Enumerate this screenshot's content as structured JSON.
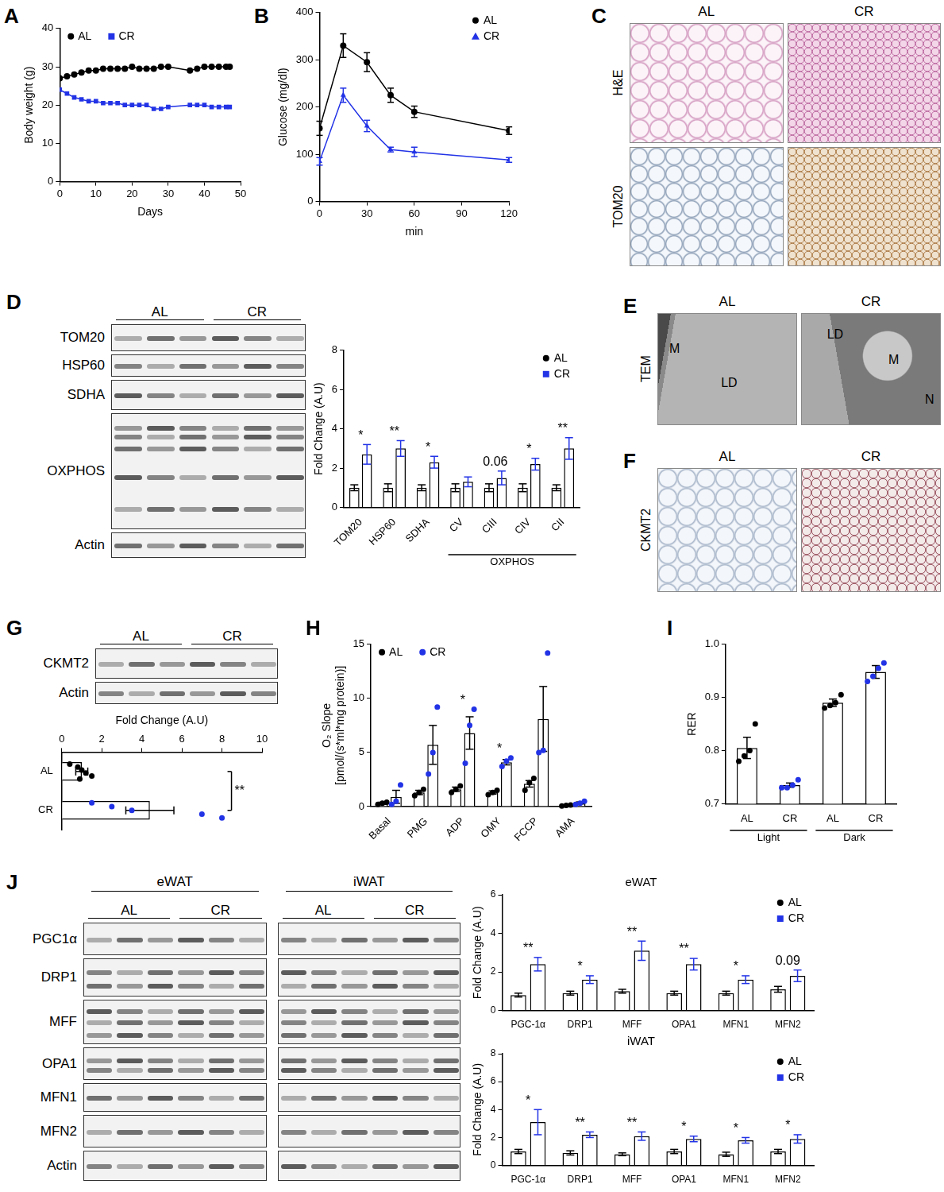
{
  "chart_data": [
    {
      "type": "line",
      "panel": "A",
      "xlabel": "Days",
      "ylabel": "Body weight (g)",
      "x": [
        0,
        2,
        4,
        6,
        8,
        10,
        12,
        14,
        16,
        18,
        20,
        22,
        24,
        26,
        28,
        30,
        36,
        38,
        40,
        42,
        44,
        46,
        47
      ],
      "xlim": [
        0,
        50
      ],
      "xticks": [
        0,
        10,
        20,
        30,
        40,
        50
      ],
      "ylim": [
        0,
        40
      ],
      "yticks": [
        0,
        10,
        20,
        30,
        40
      ],
      "legend": "top-left",
      "grid": false,
      "series": [
        {
          "name": "AL",
          "color": "#000000",
          "marker": "circle",
          "values": [
            27,
            27.5,
            28,
            28.5,
            29,
            29,
            29.5,
            29.5,
            29.5,
            29.5,
            30,
            29.5,
            29.5,
            29.5,
            30,
            30,
            29,
            29.5,
            30,
            30,
            30,
            30,
            30
          ]
        },
        {
          "name": "CR",
          "color": "#2233e6",
          "marker": "square",
          "values": [
            24,
            23,
            22,
            21.5,
            21,
            21,
            20.5,
            20.5,
            20.5,
            20,
            20,
            20,
            20,
            19,
            19,
            19.5,
            20,
            20,
            20,
            19.5,
            19.5,
            19.5,
            19.5
          ]
        }
      ]
    },
    {
      "type": "line",
      "panel": "B",
      "xlabel": "min",
      "ylabel": "Glucose (mg/dl)",
      "x": [
        0,
        15,
        30,
        45,
        60,
        120
      ],
      "xlim": [
        0,
        120
      ],
      "xticks": [
        0,
        30,
        60,
        90,
        120
      ],
      "ylim": [
        0,
        400
      ],
      "yticks": [
        0,
        100,
        200,
        300,
        400
      ],
      "legend": "top-right",
      "grid": false,
      "series": [
        {
          "name": "AL",
          "color": "#000000",
          "marker": "circle",
          "values": [
            155,
            330,
            295,
            225,
            190,
            150
          ],
          "errors": [
            15,
            25,
            20,
            15,
            12,
            8
          ]
        },
        {
          "name": "CR",
          "color": "#2233e6",
          "marker": "triangle",
          "values": [
            85,
            225,
            160,
            110,
            105,
            88
          ],
          "errors": [
            8,
            15,
            12,
            5,
            10,
            5
          ]
        }
      ]
    },
    {
      "type": "bar",
      "categories": [
        "TOM20",
        "HSP60",
        "SDHA",
        "CV",
        "CIII",
        "CIV",
        "CII"
      ],
      "groups": [
        null,
        null,
        null,
        "OXPHOS",
        "OXPHOS",
        "OXPHOS",
        "OXPHOS"
      ],
      "ylabel": "Fold Change (A.U)",
      "ylim": [
        0,
        8
      ],
      "yticks": [
        0,
        2,
        4,
        6,
        8
      ],
      "legend": "top-right",
      "grid": false,
      "annotations": [
        "*",
        "**",
        "*",
        null,
        "0.06",
        "*",
        "**"
      ],
      "series": [
        {
          "name": "AL",
          "color": "#000000",
          "marker": "circle",
          "values": [
            1,
            1,
            1,
            1,
            1,
            1,
            1
          ],
          "errors": [
            0.15,
            0.2,
            0.15,
            0.2,
            0.2,
            0.2,
            0.15
          ]
        },
        {
          "name": "CR",
          "color": "#2233e6",
          "marker": "square",
          "values": [
            2.7,
            3.0,
            2.3,
            1.3,
            1.5,
            2.2,
            3.0
          ],
          "errors": [
            0.5,
            0.4,
            0.3,
            0.25,
            0.35,
            0.3,
            0.55
          ]
        }
      ]
    },
    {
      "type": "bar",
      "orientation": "horizontal",
      "categories": [
        "AL",
        "CR"
      ],
      "xlabel": "Fold Change (A.U)",
      "xlim": [
        0,
        10
      ],
      "xticks": [
        0,
        2,
        4,
        6,
        8,
        10
      ],
      "grid": false,
      "significance": "**",
      "marker": "circle",
      "colors": [
        "#000000",
        "#2233e6"
      ],
      "values": [
        1.0,
        4.4
      ],
      "errors": [
        0.3,
        1.2
      ],
      "points": [
        [
          0.4,
          0.8,
          1.0,
          1.2,
          1.5,
          0.9
        ],
        [
          1.5,
          2.5,
          3.5,
          7,
          8
        ]
      ]
    },
    {
      "type": "bar",
      "panel": "H",
      "categories": [
        "Basal",
        "PMG",
        "ADP",
        "OMY",
        "FCCP",
        "AMA"
      ],
      "ylabel": [
        "O₂ Slope",
        "[pmol/(s*ml*mg protein)]"
      ],
      "ylim": [
        0,
        15
      ],
      "yticks": [
        0,
        5,
        10,
        15
      ],
      "legend": "top-left",
      "grid": false,
      "annotations": [
        null,
        null,
        "*",
        "*",
        null,
        null
      ],
      "series": [
        {
          "name": "AL",
          "color": "#000000",
          "marker": "circle",
          "values": [
            0.3,
            1.3,
            1.6,
            1.3,
            2.1,
            0.1
          ],
          "errors": [
            0.1,
            0.2,
            0.2,
            0.15,
            0.3,
            0.05
          ],
          "points": [
            [
              0.2,
              0.3,
              0.4
            ],
            [
              1.0,
              1.3,
              1.6
            ],
            [
              1.3,
              1.6,
              1.9
            ],
            [
              1.1,
              1.3,
              1.5
            ],
            [
              1.5,
              2.2,
              2.6
            ],
            [
              0.05,
              0.1,
              0.15
            ]
          ]
        },
        {
          "name": "CR",
          "color": "#2233e6",
          "marker": "circle",
          "values": [
            0.9,
            5.7,
            6.8,
            4.1,
            8.1,
            0.33
          ],
          "errors": [
            0.6,
            1.8,
            1.5,
            0.25,
            3.0,
            0.1
          ],
          "points": [
            [
              0.2,
              0.5,
              2.0
            ],
            [
              3.0,
              5.0,
              9.2
            ],
            [
              4.0,
              7.5,
              9.0
            ],
            [
              3.7,
              4.2,
              4.5
            ],
            [
              5.0,
              5.2,
              14.2
            ],
            [
              0.2,
              0.3,
              0.5
            ]
          ]
        }
      ]
    },
    {
      "type": "bar",
      "panel": "I",
      "categories": [
        "AL",
        "CR",
        "AL",
        "CR"
      ],
      "groups": [
        "Light",
        "Light",
        "Dark",
        "Dark"
      ],
      "ylabel": "RER",
      "ylim": [
        0.7,
        1.0
      ],
      "yticks": [
        0.7,
        0.8,
        0.9,
        {
          "value": 1,
          "label": "1.0"
        }
      ],
      "grid": false,
      "marker": "circle",
      "colors": [
        "#000000",
        "#2233e6",
        "#000000",
        "#2233e6"
      ],
      "values": [
        0.805,
        0.735,
        0.89,
        0.948
      ],
      "errors": [
        0.02,
        0.004,
        0.007,
        0.012
      ],
      "points": [
        [
          0.78,
          0.79,
          0.8,
          0.85
        ],
        [
          0.73,
          0.73,
          0.735,
          0.745
        ],
        [
          0.88,
          0.885,
          0.89,
          0.905
        ],
        [
          0.93,
          0.94,
          0.955,
          0.965
        ]
      ]
    },
    {
      "type": "bar",
      "title": "eWAT",
      "categories": [
        "PGC-1α",
        "DRP1",
        "MFF",
        "OPA1",
        "MFN1",
        "MFN2"
      ],
      "ylabel": "Fold Change (A.U)",
      "ylim": [
        0,
        6
      ],
      "yticks": [
        0,
        2,
        4,
        6
      ],
      "legend": "top-right",
      "grid": false,
      "annotations": [
        "**",
        "*",
        "**",
        "**",
        "*",
        "0.09"
      ],
      "series": [
        {
          "name": "AL",
          "color": "#000000",
          "marker": "circle",
          "values": [
            0.8,
            0.9,
            1.0,
            0.9,
            0.9,
            1.1
          ],
          "errors": [
            0.1,
            0.1,
            0.1,
            0.1,
            0.1,
            0.15
          ]
        },
        {
          "name": "CR",
          "color": "#2233e6",
          "marker": "square",
          "values": [
            2.4,
            1.6,
            3.1,
            2.4,
            1.6,
            1.8
          ],
          "errors": [
            0.35,
            0.2,
            0.5,
            0.3,
            0.2,
            0.3
          ]
        }
      ]
    },
    {
      "type": "bar",
      "title": "iWAT",
      "categories": [
        "PGC-1α",
        "DRP1",
        "MFF",
        "OPA1",
        "MFN1",
        "MFN2"
      ],
      "ylabel": "Fold Change (A.U)",
      "ylim": [
        0,
        8
      ],
      "yticks": [
        0,
        2,
        4,
        6,
        8
      ],
      "legend": "top-right",
      "grid": false,
      "annotations": [
        "*",
        "**",
        "**",
        "*",
        "*",
        "*"
      ],
      "series": [
        {
          "name": "AL",
          "color": "#000000",
          "marker": "circle",
          "values": [
            1.0,
            0.9,
            0.8,
            1.0,
            0.8,
            1.0
          ],
          "errors": [
            0.15,
            0.15,
            0.1,
            0.15,
            0.15,
            0.15
          ]
        },
        {
          "name": "CR",
          "color": "#2233e6",
          "marker": "square",
          "values": [
            3.1,
            2.2,
            2.1,
            1.9,
            1.8,
            1.9
          ],
          "errors": [
            0.9,
            0.2,
            0.3,
            0.2,
            0.2,
            0.3
          ]
        }
      ]
    }
  ],
  "images": [
    {
      "panel": "C",
      "columns": [
        "AL",
        "CR"
      ],
      "rows": [
        "H&E",
        "TOM20"
      ]
    },
    {
      "panel": "E",
      "columns": [
        "AL",
        "CR"
      ],
      "rows": [
        "TEM"
      ],
      "annotations": [
        [
          "M",
          "LD"
        ],
        [
          "LD",
          "M",
          "N"
        ]
      ]
    },
    {
      "panel": "F",
      "columns": [
        "AL",
        "CR"
      ],
      "rows": [
        "CKMT2"
      ]
    }
  ],
  "blots": [
    {
      "panel": "D",
      "groups": [
        "AL",
        "CR"
      ],
      "rows": [
        "TOM20",
        "HSP60",
        "SDHA",
        "OXPHOS",
        "Actin"
      ]
    },
    {
      "panel": "G",
      "groups": [
        "AL",
        "CR"
      ],
      "rows": [
        "CKMT2",
        "Actin"
      ]
    },
    {
      "panel": "J",
      "tissues": [
        "eWAT",
        "iWAT"
      ],
      "groups": [
        "AL",
        "CR"
      ],
      "rows": [
        "PGC1α",
        "DRP1",
        "MFF",
        "OPA1",
        "MFN1",
        "MFN2",
        "Actin"
      ]
    }
  ]
}
